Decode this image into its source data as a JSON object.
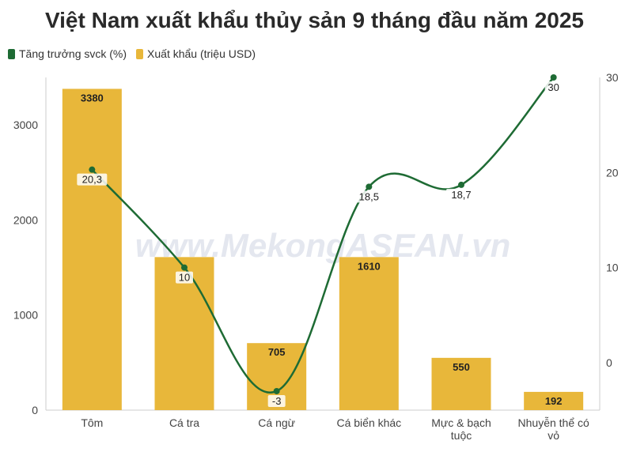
{
  "colors": {
    "bar": "#E8B73A",
    "line": "#1E6B34",
    "axis": "#cccccc"
  },
  "watermark": "www.MekongASEAN.vn",
  "chart_data": {
    "type": "bar",
    "title": "Việt Nam xuất khẩu thủy sản 9 tháng đầu năm 2025",
    "categories": [
      "Tôm",
      "Cá tra",
      "Cá ngừ",
      "Cá biển khác",
      "Mực & bạch tuộc",
      "Nhuyễn thể có vỏ"
    ],
    "series": [
      {
        "name": "Tăng trưởng svck (%)",
        "type": "line",
        "axis": "right",
        "values": [
          20.3,
          10,
          -3,
          18.5,
          18.7,
          30
        ],
        "labels": [
          "20,3",
          "10",
          "-3",
          "18,5",
          "18,7",
          "30"
        ]
      },
      {
        "name": "Xuất khẩu (triệu USD)",
        "type": "bar",
        "axis": "left",
        "values": [
          3380,
          1610,
          705,
          1610,
          550,
          192
        ],
        "labels": [
          "3380",
          "",
          "705",
          "1610",
          "550",
          "192"
        ]
      }
    ],
    "y_left": {
      "ticks": [
        0,
        1000,
        2000,
        3000
      ],
      "min": 0,
      "max": 3500
    },
    "y_right": {
      "ticks": [
        0,
        10,
        20,
        30
      ],
      "min": -5,
      "max": 30
    },
    "legend_position": "top-left",
    "grid": false
  }
}
